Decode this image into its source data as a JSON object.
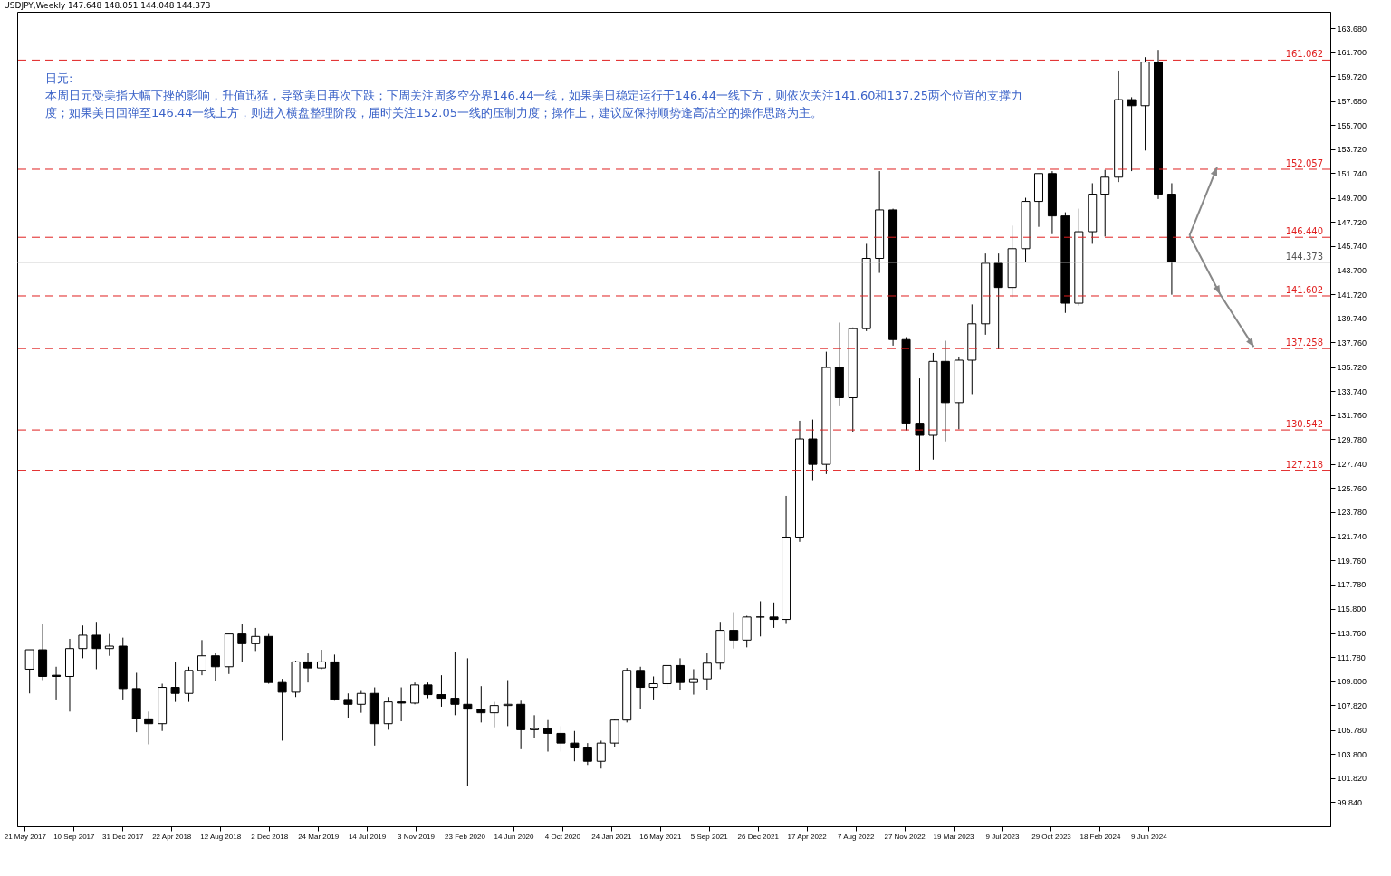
{
  "chart_data": {
    "type": "candlestick",
    "title": "USDJPY,Weekly  147.648 148.051 144.048 144.373",
    "annotations": [
      "日元:",
      "本周日元受美指大幅下挫的影响，升值迅猛，导致美日再次下跌；下周关注周多空分界146.44一线，如果美日稳定运行于146.44一线下方，则依次关注141.60和137.25两个位置的支撑力度；如果美日回弹至146.44一线上方，则进入横盘整理阶段，届时关注152.05一线的压制力度；操作上，建议应保持顺势逢高沽空的操作思路为主。"
    ],
    "x": [
      "2017-06",
      "2017-07",
      "2017-08",
      "2017-09",
      "2017-10",
      "2017-11",
      "2017-12",
      "2018-01",
      "2018-02",
      "2018-03",
      "2018-04",
      "2018-05",
      "2018-06",
      "2018-07",
      "2018-08",
      "2018-09",
      "2018-10",
      "2018-11",
      "2018-12",
      "2019-01",
      "2019-02",
      "2019-03",
      "2019-04",
      "2019-05",
      "2019-06",
      "2019-07",
      "2019-08",
      "2019-09",
      "2019-10",
      "2019-11",
      "2019-12",
      "2020-01",
      "2020-02",
      "2020-03",
      "2020-04",
      "2020-05",
      "2020-06",
      "2020-07",
      "2020-08",
      "2020-09",
      "2020-10",
      "2020-11",
      "2020-12",
      "2021-01",
      "2021-02",
      "2021-03",
      "2021-04",
      "2021-05",
      "2021-06",
      "2021-07",
      "2021-08",
      "2021-09",
      "2021-10",
      "2021-11",
      "2021-12",
      "2022-01",
      "2022-02",
      "2022-03",
      "2022-04",
      "2022-05",
      "2022-06",
      "2022-07",
      "2022-08",
      "2022-09",
      "2022-10",
      "2022-11",
      "2022-12",
      "2023-01",
      "2023-02",
      "2023-03",
      "2023-04",
      "2023-05",
      "2023-06",
      "2023-07",
      "2023-08",
      "2023-09",
      "2023-10",
      "2023-11",
      "2023-12",
      "2024-01",
      "2024-02",
      "2024-03",
      "2024-04",
      "2024-05",
      "2024-06",
      "2024-07",
      "2024-08"
    ],
    "ohlc": [
      [
        110.8,
        112.4,
        108.8,
        112.4
      ],
      [
        112.4,
        114.5,
        109.9,
        110.2
      ],
      [
        110.3,
        111.0,
        108.3,
        110.2
      ],
      [
        110.2,
        113.3,
        107.3,
        112.5
      ],
      [
        112.5,
        114.4,
        111.7,
        113.6
      ],
      [
        113.6,
        114.7,
        110.8,
        112.5
      ],
      [
        112.5,
        113.7,
        111.9,
        112.7
      ],
      [
        112.7,
        113.4,
        108.3,
        109.2
      ],
      [
        109.2,
        110.5,
        105.6,
        106.7
      ],
      [
        106.7,
        107.3,
        104.6,
        106.3
      ],
      [
        106.3,
        109.6,
        105.7,
        109.3
      ],
      [
        109.3,
        111.4,
        108.1,
        108.8
      ],
      [
        108.8,
        111.0,
        108.1,
        110.7
      ],
      [
        110.7,
        113.2,
        110.3,
        111.9
      ],
      [
        111.9,
        112.1,
        109.8,
        111.0
      ],
      [
        111.0,
        113.7,
        110.4,
        113.7
      ],
      [
        113.7,
        114.5,
        111.4,
        112.9
      ],
      [
        112.9,
        114.2,
        112.3,
        113.5
      ],
      [
        113.5,
        113.7,
        109.6,
        109.7
      ],
      [
        109.7,
        110.0,
        104.9,
        108.9
      ],
      [
        108.9,
        111.5,
        108.5,
        111.4
      ],
      [
        111.4,
        112.1,
        109.7,
        110.9
      ],
      [
        110.9,
        112.4,
        110.8,
        111.4
      ],
      [
        111.4,
        112.0,
        108.2,
        108.3
      ],
      [
        108.3,
        108.8,
        106.8,
        107.9
      ],
      [
        107.9,
        109.0,
        107.2,
        108.8
      ],
      [
        108.8,
        109.3,
        104.5,
        106.3
      ],
      [
        106.3,
        108.5,
        105.8,
        108.1
      ],
      [
        108.1,
        109.3,
        106.5,
        108.0
      ],
      [
        108.0,
        109.7,
        107.9,
        109.5
      ],
      [
        109.5,
        109.7,
        108.4,
        108.7
      ],
      [
        108.7,
        110.3,
        107.7,
        108.4
      ],
      [
        108.4,
        112.2,
        107.0,
        107.9
      ],
      [
        107.9,
        111.7,
        101.2,
        107.5
      ],
      [
        107.5,
        109.4,
        106.4,
        107.2
      ],
      [
        107.2,
        108.1,
        106.0,
        107.8
      ],
      [
        107.8,
        109.9,
        106.1,
        107.9
      ],
      [
        107.9,
        108.2,
        104.2,
        105.8
      ],
      [
        105.8,
        107.0,
        105.1,
        105.9
      ],
      [
        105.9,
        106.6,
        104.0,
        105.5
      ],
      [
        105.5,
        106.1,
        104.0,
        104.7
      ],
      [
        104.7,
        105.7,
        103.2,
        104.3
      ],
      [
        104.3,
        104.7,
        102.9,
        103.2
      ],
      [
        103.2,
        104.9,
        102.6,
        104.7
      ],
      [
        104.7,
        106.7,
        104.4,
        106.6
      ],
      [
        106.6,
        110.9,
        106.4,
        110.7
      ],
      [
        110.7,
        111.0,
        107.5,
        109.3
      ],
      [
        109.3,
        110.2,
        108.3,
        109.6
      ],
      [
        109.6,
        111.1,
        109.2,
        111.1
      ],
      [
        111.1,
        111.7,
        109.1,
        109.7
      ],
      [
        109.7,
        110.8,
        108.7,
        110.0
      ],
      [
        110.0,
        112.1,
        109.1,
        111.3
      ],
      [
        111.3,
        114.7,
        110.8,
        114.0
      ],
      [
        114.0,
        115.5,
        112.5,
        113.2
      ],
      [
        113.2,
        115.2,
        112.6,
        115.1
      ],
      [
        115.1,
        116.4,
        113.5,
        115.1
      ],
      [
        115.1,
        116.3,
        114.2,
        114.9
      ],
      [
        114.9,
        125.1,
        114.6,
        121.7
      ],
      [
        121.7,
        131.3,
        121.3,
        129.8
      ],
      [
        129.8,
        131.4,
        126.4,
        127.7
      ],
      [
        127.7,
        137.0,
        126.9,
        135.7
      ],
      [
        135.7,
        139.4,
        132.5,
        133.2
      ],
      [
        133.2,
        139.0,
        130.4,
        138.9
      ],
      [
        138.9,
        145.9,
        138.7,
        144.7
      ],
      [
        144.7,
        151.9,
        143.5,
        148.7
      ],
      [
        148.7,
        148.8,
        137.5,
        138.0
      ],
      [
        138.0,
        138.2,
        130.5,
        131.1
      ],
      [
        131.1,
        134.8,
        127.2,
        130.1
      ],
      [
        130.1,
        136.9,
        128.1,
        136.2
      ],
      [
        136.2,
        137.9,
        129.6,
        132.8
      ],
      [
        132.8,
        136.6,
        130.6,
        136.3
      ],
      [
        136.3,
        140.9,
        133.5,
        139.3
      ],
      [
        139.3,
        145.1,
        138.4,
        144.3
      ],
      [
        144.3,
        145.1,
        137.2,
        142.3
      ],
      [
        142.3,
        147.4,
        141.5,
        145.5
      ],
      [
        145.5,
        149.7,
        144.4,
        149.4
      ],
      [
        149.4,
        151.7,
        147.3,
        151.7
      ],
      [
        151.7,
        151.9,
        146.7,
        148.2
      ],
      [
        148.2,
        148.5,
        140.2,
        141.0
      ],
      [
        141.0,
        148.8,
        140.8,
        146.9
      ],
      [
        146.9,
        150.9,
        145.9,
        150.0
      ],
      [
        150.0,
        152.0,
        146.5,
        151.4
      ],
      [
        151.4,
        160.2,
        151.0,
        157.8
      ],
      [
        157.8,
        158.0,
        151.9,
        157.3
      ],
      [
        157.3,
        161.3,
        153.6,
        160.9
      ],
      [
        160.9,
        161.9,
        149.6,
        150.0
      ],
      [
        150.0,
        150.9,
        141.7,
        144.4
      ]
    ],
    "xlim": [
      "2017-05-14",
      "2025-07-20"
    ],
    "xticks": [
      {
        "value": "2017-05-21",
        "label": "21 May 2017"
      },
      {
        "value": "2017-09-10",
        "label": "10 Sep 2017"
      },
      {
        "value": "2017-12-31",
        "label": "31 Dec 2017"
      },
      {
        "value": "2018-04-22",
        "label": "22 Apr 2018"
      },
      {
        "value": "2018-08-12",
        "label": "12 Aug 2018"
      },
      {
        "value": "2018-12-02",
        "label": "2 Dec 2018"
      },
      {
        "value": "2019-03-24",
        "label": "24 Mar 2019"
      },
      {
        "value": "2019-07-14",
        "label": "14 Jul 2019"
      },
      {
        "value": "2019-11-03",
        "label": "3 Nov 2019"
      },
      {
        "value": "2020-02-23",
        "label": "23 Feb 2020"
      },
      {
        "value": "2020-06-14",
        "label": "14 Jun 2020"
      },
      {
        "value": "2020-10-04",
        "label": "4 Oct 2020"
      },
      {
        "value": "2021-01-24",
        "label": "24 Jan 2021"
      },
      {
        "value": "2021-05-16",
        "label": "16 May 2021"
      },
      {
        "value": "2021-09-05",
        "label": "5 Sep 2021"
      },
      {
        "value": "2021-12-26",
        "label": "26 Dec 2021"
      },
      {
        "value": "2022-04-17",
        "label": "17 Apr 2022"
      },
      {
        "value": "2022-08-07",
        "label": "7 Aug 2022"
      },
      {
        "value": "2022-11-27",
        "label": "27 Nov 2022"
      },
      {
        "value": "2023-03-19",
        "label": "19 Mar 2023"
      },
      {
        "value": "2023-07-09",
        "label": "9 Jul 2023"
      },
      {
        "value": "2023-10-29",
        "label": "29 Oct 2023"
      },
      {
        "value": "2024-02-18",
        "label": "18 Feb 2024"
      },
      {
        "value": "2024-06-09",
        "label": "9 Jun 2024"
      }
    ],
    "ylim": [
      97.84,
      165.05
    ],
    "yticks": [
      {
        "value": 99.84,
        "label": "99.840"
      },
      {
        "value": 101.82,
        "label": "101.820"
      },
      {
        "value": 103.8,
        "label": "103.800"
      },
      {
        "value": 105.78,
        "label": "105.780"
      },
      {
        "value": 107.82,
        "label": "107.820"
      },
      {
        "value": 109.8,
        "label": "109.800"
      },
      {
        "value": 111.78,
        "label": "111.780"
      },
      {
        "value": 113.76,
        "label": "113.760"
      },
      {
        "value": 115.8,
        "label": "115.800"
      },
      {
        "value": 117.78,
        "label": "117.780"
      },
      {
        "value": 119.76,
        "label": "119.760"
      },
      {
        "value": 121.74,
        "label": "121.740"
      },
      {
        "value": 123.78,
        "label": "123.780"
      },
      {
        "value": 125.76,
        "label": "125.760"
      },
      {
        "value": 127.74,
        "label": "127.740"
      },
      {
        "value": 129.78,
        "label": "129.780"
      },
      {
        "value": 131.76,
        "label": "131.760"
      },
      {
        "value": 133.74,
        "label": "133.740"
      },
      {
        "value": 135.72,
        "label": "135.720"
      },
      {
        "value": 137.76,
        "label": "137.760"
      },
      {
        "value": 139.74,
        "label": "139.740"
      },
      {
        "value": 141.72,
        "label": "141.720"
      },
      {
        "value": 143.7,
        "label": "143.700"
      },
      {
        "value": 145.74,
        "label": "145.740"
      },
      {
        "value": 147.72,
        "label": "147.720"
      },
      {
        "value": 149.7,
        "label": "149.700"
      },
      {
        "value": 151.74,
        "label": "151.740"
      },
      {
        "value": 153.72,
        "label": "153.720"
      },
      {
        "value": 155.7,
        "label": "155.700"
      },
      {
        "value": 157.68,
        "label": "157.680"
      },
      {
        "value": 159.72,
        "label": "159.720"
      },
      {
        "value": 161.7,
        "label": "161.700"
      },
      {
        "value": 163.68,
        "label": "163.680"
      }
    ],
    "ref_lines": [
      {
        "axis": "y",
        "value": 161.062,
        "label": "161.062",
        "color": "#e02020",
        "line_style": "dashed"
      },
      {
        "axis": "y",
        "value": 152.057,
        "label": "152.057",
        "color": "#e02020",
        "line_style": "dashed"
      },
      {
        "axis": "y",
        "value": 146.44,
        "label": "146.440",
        "color": "#e02020",
        "line_style": "dashed"
      },
      {
        "axis": "y",
        "value": 144.373,
        "label": "144.373",
        "color": "#c0c0c0",
        "line_style": "solid"
      },
      {
        "axis": "y",
        "value": 141.602,
        "label": "141.602",
        "color": "#e02020",
        "line_style": "dashed"
      },
      {
        "axis": "y",
        "value": 137.258,
        "label": "137.258",
        "color": "#e02020",
        "line_style": "dashed"
      },
      {
        "axis": "y",
        "value": 130.542,
        "label": "130.542",
        "color": "#e02020",
        "line_style": "dashed"
      },
      {
        "axis": "y",
        "value": 127.218,
        "label": "127.218",
        "color": "#e02020",
        "line_style": "dashed"
      }
    ],
    "grid": false,
    "legend": false
  }
}
